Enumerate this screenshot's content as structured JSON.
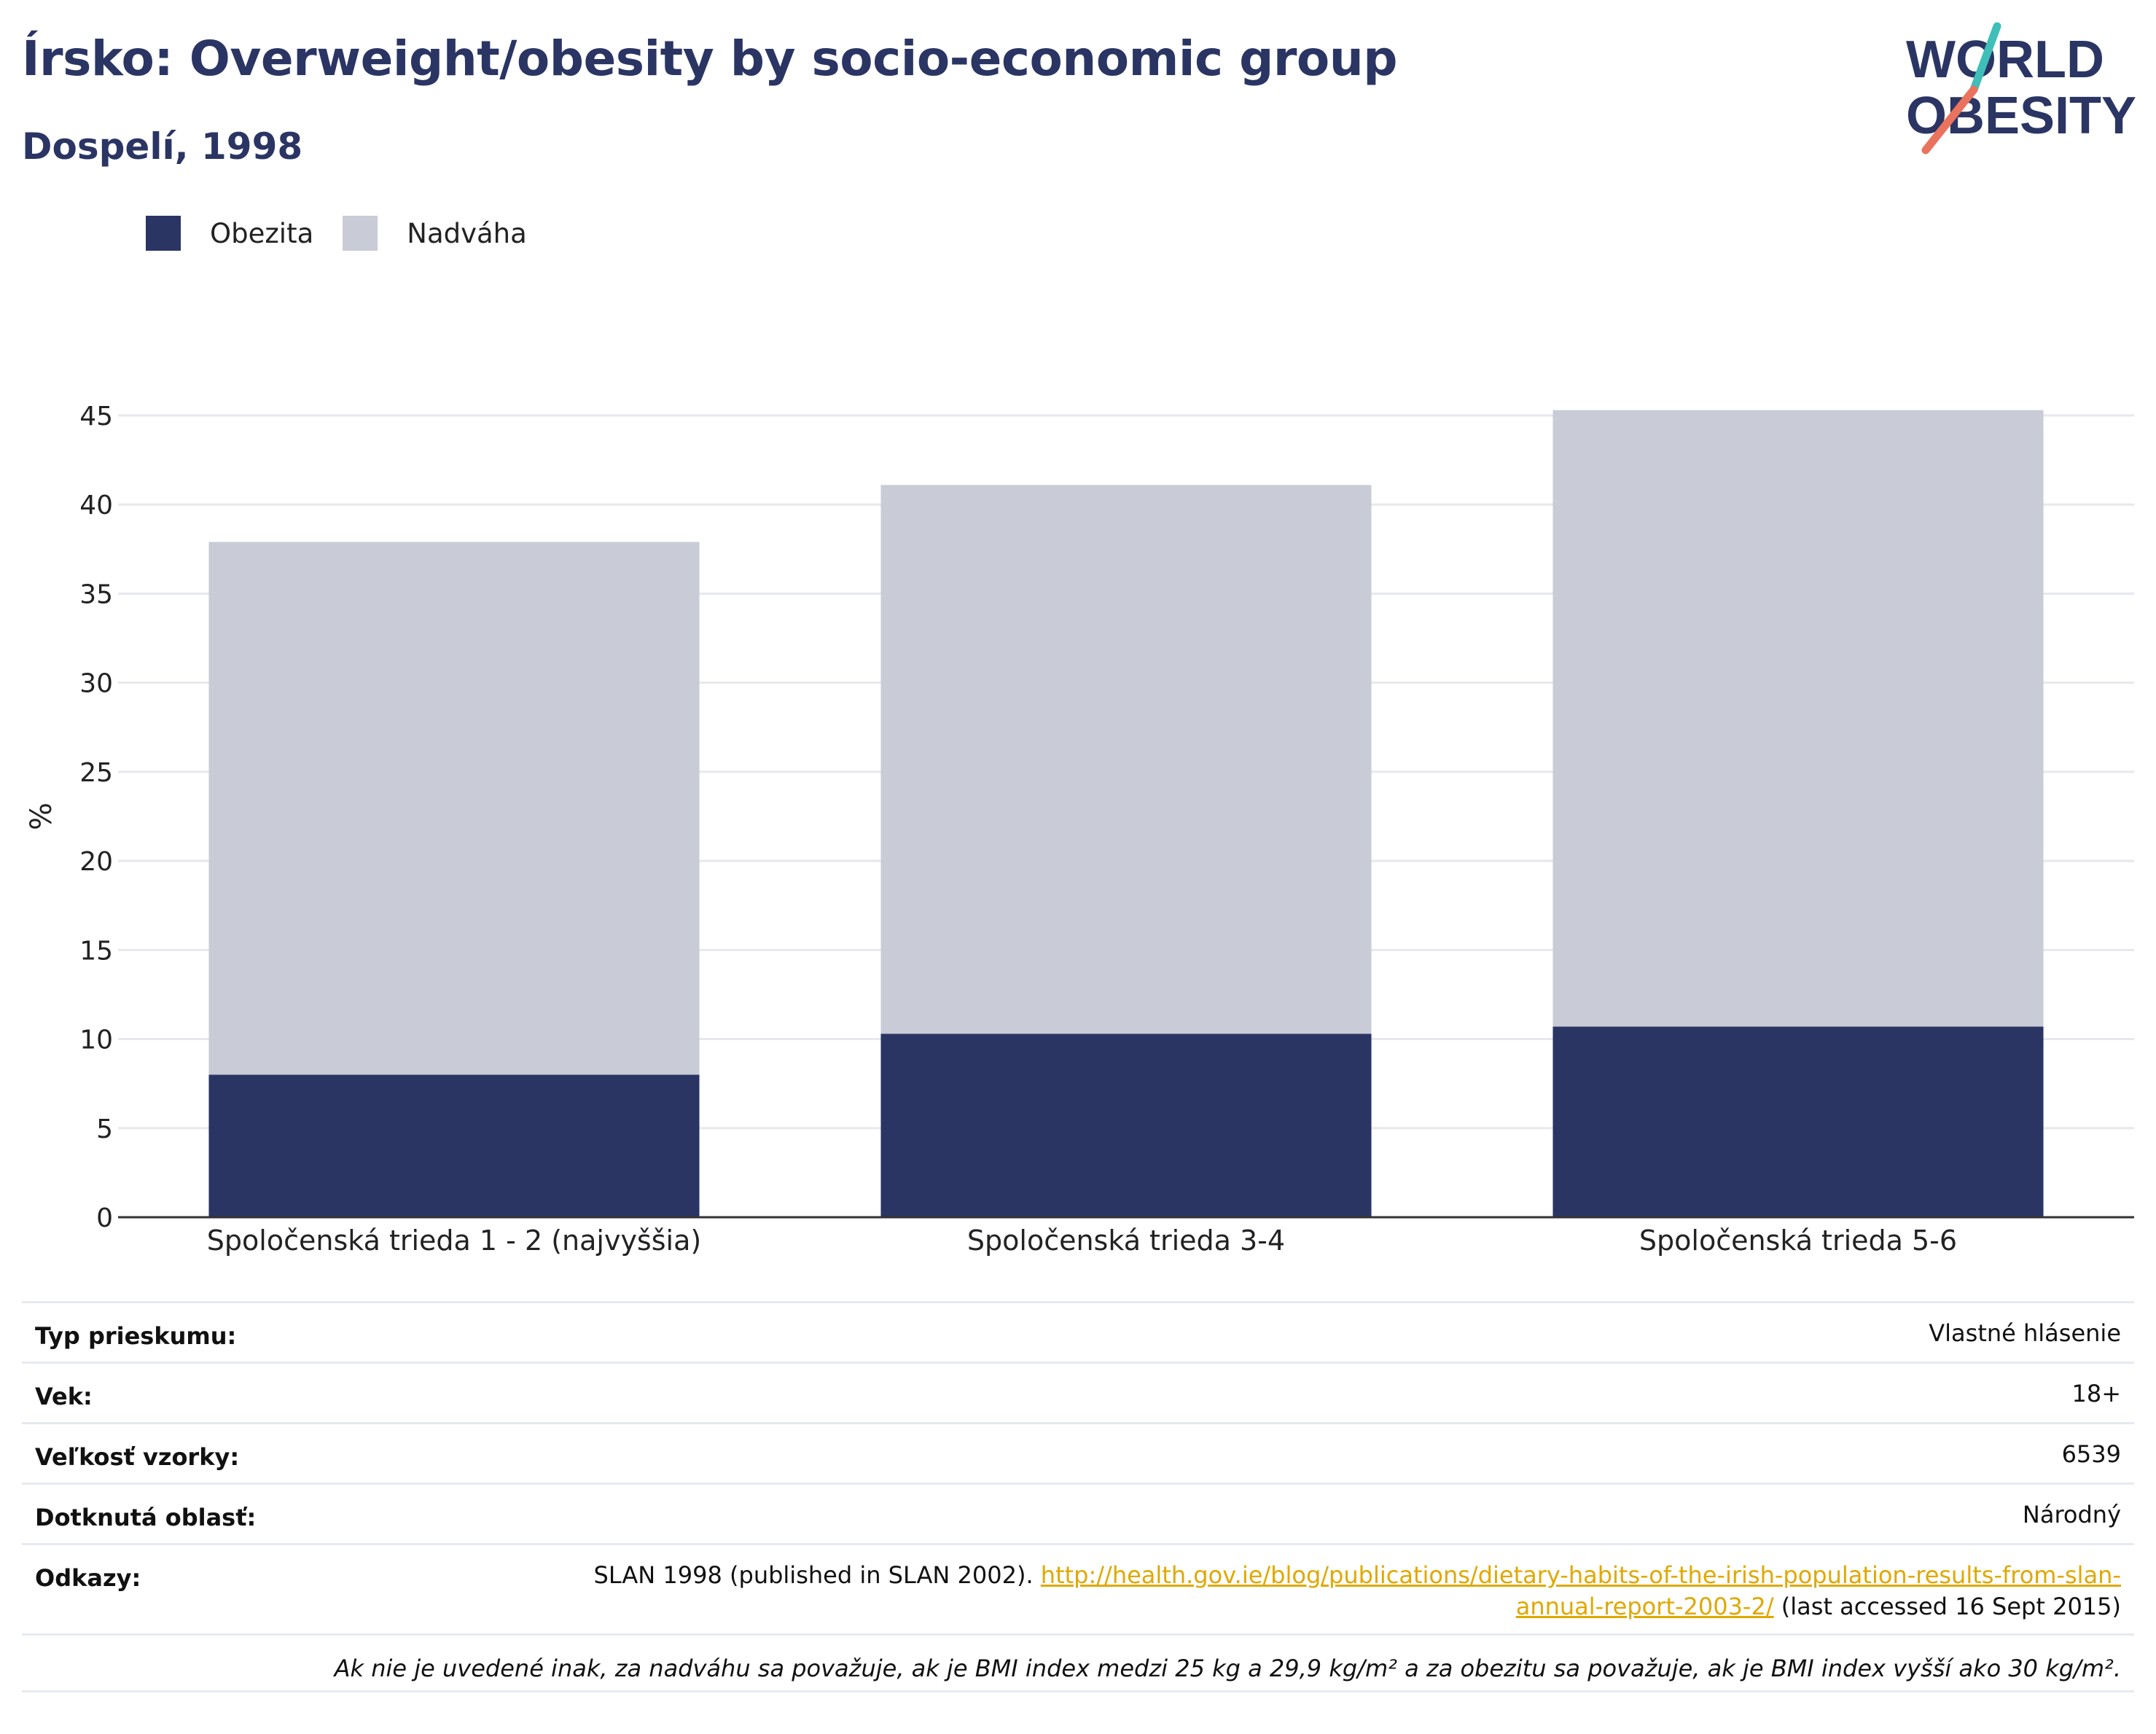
{
  "header": {
    "title": "Írsko: Overweight/obesity by socio-economic group",
    "subtitle": "Dospelí, 1998"
  },
  "logo": {
    "line1": "WORLD",
    "line2": "OBESITY"
  },
  "colors": {
    "obesity": "#2a3564",
    "overweight": "#c9cbd6",
    "title": "#2a3564",
    "link": "#e0a800",
    "logo_teal": "#3fbfb8",
    "logo_coral": "#e9735c"
  },
  "legend": {
    "items": [
      {
        "label": "Obezita",
        "color": "#2a3564"
      },
      {
        "label": "Nadváha",
        "color": "#c9cbd6"
      }
    ]
  },
  "chart_data": {
    "type": "bar",
    "stacked": true,
    "categories": [
      "Spoločenská trieda 1 - 2 (najvyššia)",
      "Spoločenská trieda 3-4",
      "Spoločenská trieda 5-6"
    ],
    "series": [
      {
        "name": "Obezita",
        "values": [
          8.0,
          10.3,
          10.7
        ]
      },
      {
        "name": "Nadváha",
        "values": [
          29.9,
          30.8,
          34.6
        ]
      }
    ],
    "ylabel": "%",
    "ylim": [
      0,
      45
    ],
    "yticks": [
      0,
      5,
      10,
      15,
      20,
      25,
      30,
      35,
      40,
      45
    ],
    "grid": true,
    "legend_position": "top-left"
  },
  "info": {
    "rows": [
      {
        "label": "Typ prieskumu:",
        "value": "Vlastné hlásenie"
      },
      {
        "label": "Vek:",
        "value": "18+"
      },
      {
        "label": "Veľkosť vzorky:",
        "value": "6539"
      },
      {
        "label": "Dotknutá oblasť:",
        "value": "Národný"
      }
    ],
    "references": {
      "label": "Odkazy:",
      "text_before": "SLAN 1998 (published in SLAN 2002). ",
      "link": "http://health.gov.ie/blog/publications/dietary-habits-of-the-irish-population-results-from-slan-annual-report-2003-2/",
      "text_after": " (last accessed 16 Sept 2015)"
    },
    "note": "Ak nie je uvedené inak, za nadváhu sa považuje, ak je BMI index medzi 25 kg a 29,9 kg/m² a za obezitu sa považuje, ak je BMI index vyšší ako 30 kg/m²."
  }
}
